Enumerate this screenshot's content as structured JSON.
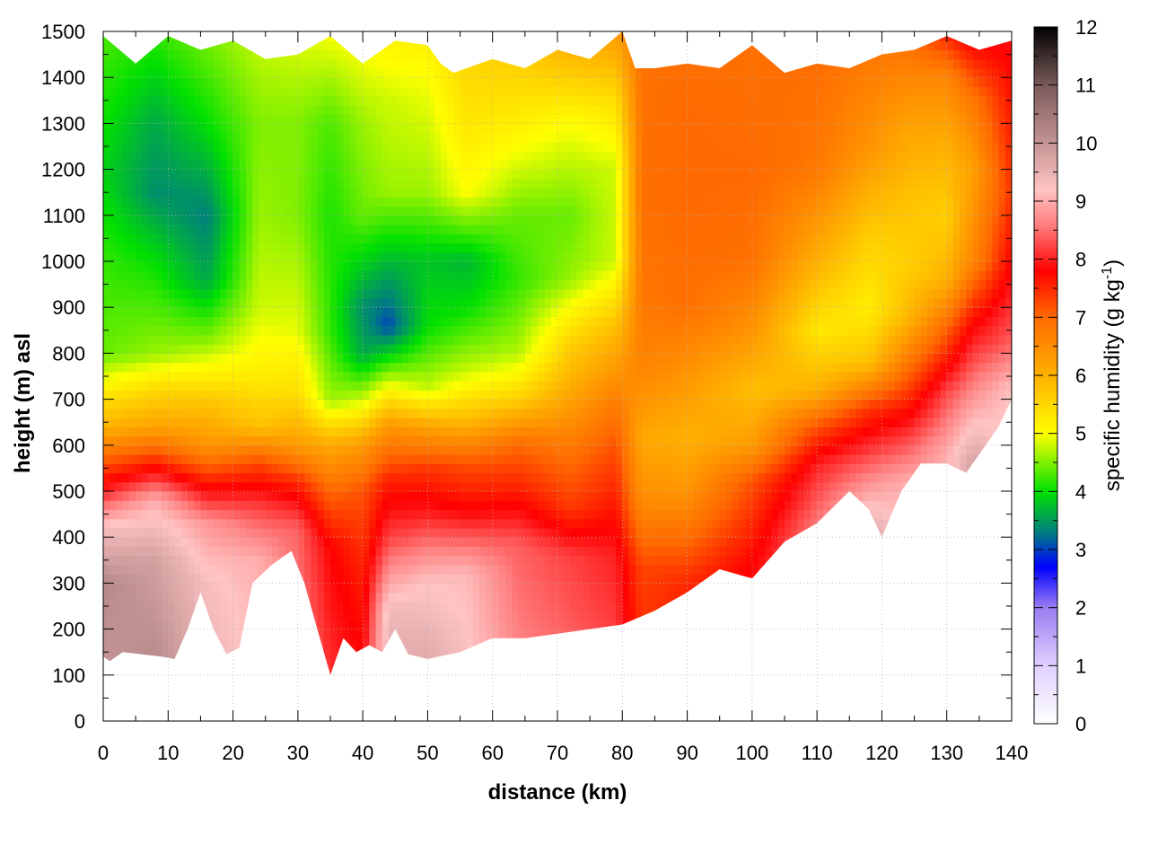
{
  "chart_data": {
    "type": "heatmap",
    "title": "",
    "xlabel": "distance (km)",
    "ylabel": "height (m) asl",
    "colorbar": {
      "label_main": "specific humidity (g kg",
      "label_sup": "-1",
      "label_close": ")",
      "range": [
        0,
        12
      ],
      "ticks": [
        "0",
        "1",
        "2",
        "3",
        "4",
        "5",
        "6",
        "7",
        "8",
        "9",
        "10",
        "11",
        "12"
      ],
      "stops": [
        {
          "v": 0,
          "color": "#ffffff"
        },
        {
          "v": 1,
          "color": "#e0d0ff"
        },
        {
          "v": 2,
          "color": "#9a7cf0"
        },
        {
          "v": 2.7,
          "color": "#0000ff"
        },
        {
          "v": 3.3,
          "color": "#007f7f"
        },
        {
          "v": 4,
          "color": "#00e000"
        },
        {
          "v": 5,
          "color": "#ffff00"
        },
        {
          "v": 6,
          "color": "#ffb000"
        },
        {
          "v": 7,
          "color": "#ff6a00"
        },
        {
          "v": 7.8,
          "color": "#ff0000"
        },
        {
          "v": 8.6,
          "color": "#ff8080"
        },
        {
          "v": 9.2,
          "color": "#ffc4c4"
        },
        {
          "v": 10,
          "color": "#c49494"
        },
        {
          "v": 11,
          "color": "#7a5a5a"
        },
        {
          "v": 12,
          "color": "#000000"
        }
      ]
    },
    "xlim": [
      0,
      140
    ],
    "ylim": [
      0,
      1500
    ],
    "xticks": [
      "0",
      "10",
      "20",
      "30",
      "40",
      "50",
      "60",
      "70",
      "80",
      "90",
      "100",
      "110",
      "120",
      "130",
      "140"
    ],
    "yticks": [
      "0",
      "100",
      "200",
      "300",
      "400",
      "500",
      "600",
      "700",
      "800",
      "900",
      "1000",
      "1100",
      "1200",
      "1300",
      "1400",
      "1500"
    ],
    "grid": true,
    "terrain": {
      "x": [
        0,
        1,
        3,
        6,
        9,
        11,
        13,
        15,
        17,
        19,
        21,
        23,
        26,
        29,
        31,
        33,
        35,
        37,
        39,
        41,
        43,
        45,
        47,
        50,
        55,
        60,
        65,
        70,
        75,
        80,
        85,
        90,
        95,
        100,
        105,
        110,
        115,
        118,
        120,
        123,
        126,
        130,
        133,
        136,
        138,
        140
      ],
      "y": [
        140,
        130,
        150,
        145,
        140,
        135,
        200,
        280,
        200,
        145,
        160,
        300,
        340,
        370,
        300,
        200,
        100,
        180,
        150,
        165,
        150,
        200,
        145,
        135,
        150,
        180,
        180,
        190,
        200,
        210,
        240,
        280,
        330,
        310,
        390,
        430,
        500,
        460,
        400,
        500,
        560,
        560,
        540,
        600,
        640,
        700
      ]
    },
    "top_edge": {
      "x": [
        0,
        5,
        10,
        15,
        20,
        25,
        30,
        35,
        40,
        45,
        50,
        52,
        54,
        60,
        65,
        70,
        75,
        80,
        82,
        85,
        90,
        95,
        100,
        105,
        110,
        115,
        120,
        125,
        130,
        135,
        140
      ],
      "y": [
        1490,
        1430,
        1490,
        1460,
        1480,
        1440,
        1450,
        1490,
        1430,
        1480,
        1470,
        1430,
        1410,
        1440,
        1420,
        1460,
        1440,
        1500,
        1420,
        1420,
        1430,
        1420,
        1470,
        1410,
        1430,
        1420,
        1450,
        1460,
        1490,
        1460,
        1480
      ]
    },
    "profiles": [
      {
        "x": 0,
        "layers": [
          [
            0,
            9.8
          ],
          [
            300,
            10.2
          ],
          [
            420,
            9.3
          ],
          [
            500,
            8.0
          ],
          [
            560,
            7.2
          ],
          [
            640,
            6.0
          ],
          [
            720,
            5.2
          ],
          [
            800,
            4.4
          ],
          [
            1000,
            4.2
          ],
          [
            1200,
            3.9
          ],
          [
            1500,
            4.3
          ]
        ]
      },
      {
        "x": 8,
        "layers": [
          [
            0,
            10.4
          ],
          [
            350,
            9.8
          ],
          [
            480,
            9.0
          ],
          [
            560,
            7.6
          ],
          [
            640,
            6.2
          ],
          [
            720,
            5.5
          ],
          [
            800,
            4.6
          ],
          [
            1000,
            4.0
          ],
          [
            1150,
            3.4
          ],
          [
            1300,
            3.6
          ],
          [
            1500,
            4.2
          ]
        ]
      },
      {
        "x": 16,
        "layers": [
          [
            0,
            9.6
          ],
          [
            300,
            9.3
          ],
          [
            430,
            8.8
          ],
          [
            520,
            7.6
          ],
          [
            600,
            6.4
          ],
          [
            700,
            5.7
          ],
          [
            820,
            4.6
          ],
          [
            960,
            3.6
          ],
          [
            1100,
            3.3
          ],
          [
            1300,
            4.0
          ],
          [
            1500,
            4.5
          ]
        ]
      },
      {
        "x": 24,
        "layers": [
          [
            0,
            9.2
          ],
          [
            350,
            9.0
          ],
          [
            480,
            8.1
          ],
          [
            560,
            7.3
          ],
          [
            640,
            5.8
          ],
          [
            760,
            5.2
          ],
          [
            900,
            4.8
          ],
          [
            1100,
            4.6
          ],
          [
            1300,
            4.5
          ],
          [
            1500,
            4.8
          ]
        ]
      },
      {
        "x": 30,
        "layers": [
          [
            0,
            8.8
          ],
          [
            420,
            8.4
          ],
          [
            520,
            7.5
          ],
          [
            600,
            6.3
          ],
          [
            700,
            5.5
          ],
          [
            850,
            4.9
          ],
          [
            1100,
            4.5
          ],
          [
            1300,
            4.5
          ],
          [
            1500,
            4.9
          ]
        ]
      },
      {
        "x": 35,
        "layers": [
          [
            0,
            8.2
          ],
          [
            380,
            7.8
          ],
          [
            500,
            7.0
          ],
          [
            600,
            6.1
          ],
          [
            700,
            4.6
          ],
          [
            850,
            4.2
          ],
          [
            1100,
            4.1
          ],
          [
            1300,
            4.3
          ],
          [
            1500,
            5.0
          ]
        ]
      },
      {
        "x": 40,
        "layers": [
          [
            0,
            8.0
          ],
          [
            300,
            7.6
          ],
          [
            400,
            7.4
          ],
          [
            500,
            7.2
          ],
          [
            600,
            6.3
          ],
          [
            700,
            4.8
          ],
          [
            800,
            3.6
          ],
          [
            900,
            3.4
          ],
          [
            1100,
            4.4
          ],
          [
            1300,
            4.6
          ],
          [
            1500,
            5.1
          ]
        ]
      },
      {
        "x": 44,
        "layers": [
          [
            0,
            9.8
          ],
          [
            240,
            9.4
          ],
          [
            400,
            8.2
          ],
          [
            520,
            7.6
          ],
          [
            640,
            6.4
          ],
          [
            740,
            4.8
          ],
          [
            860,
            3.0
          ],
          [
            980,
            3.6
          ],
          [
            1150,
            4.6
          ],
          [
            1350,
            4.8
          ],
          [
            1500,
            5.2
          ]
        ]
      },
      {
        "x": 50,
        "layers": [
          [
            0,
            10.0
          ],
          [
            300,
            9.2
          ],
          [
            450,
            8.0
          ],
          [
            550,
            7.4
          ],
          [
            640,
            6.2
          ],
          [
            720,
            4.8
          ],
          [
            860,
            4.0
          ],
          [
            1000,
            3.8
          ],
          [
            1150,
            4.6
          ],
          [
            1350,
            4.9
          ],
          [
            1500,
            5.2
          ]
        ]
      },
      {
        "x": 56,
        "layers": [
          [
            0,
            9.4
          ],
          [
            320,
            9.1
          ],
          [
            460,
            7.8
          ],
          [
            560,
            7.2
          ],
          [
            660,
            5.8
          ],
          [
            760,
            4.8
          ],
          [
            900,
            4.0
          ],
          [
            1000,
            3.7
          ],
          [
            1150,
            5.0
          ],
          [
            1350,
            5.4
          ],
          [
            1500,
            5.6
          ]
        ]
      },
      {
        "x": 64,
        "layers": [
          [
            0,
            8.8
          ],
          [
            380,
            8.4
          ],
          [
            500,
            7.6
          ],
          [
            600,
            7.0
          ],
          [
            700,
            5.6
          ],
          [
            800,
            4.7
          ],
          [
            960,
            4.2
          ],
          [
            1100,
            4.4
          ],
          [
            1300,
            5.2
          ],
          [
            1500,
            5.8
          ]
        ]
      },
      {
        "x": 72,
        "layers": [
          [
            0,
            8.6
          ],
          [
            360,
            8.2
          ],
          [
            460,
            7.4
          ],
          [
            560,
            7.0
          ],
          [
            700,
            6.2
          ],
          [
            820,
            5.6
          ],
          [
            960,
            4.6
          ],
          [
            1100,
            4.4
          ],
          [
            1300,
            5.0
          ],
          [
            1500,
            6.2
          ]
        ]
      },
      {
        "x": 79,
        "layers": [
          [
            0,
            8.4
          ],
          [
            360,
            8.0
          ],
          [
            480,
            7.6
          ],
          [
            600,
            7.2
          ],
          [
            720,
            6.6
          ],
          [
            860,
            5.8
          ],
          [
            1000,
            4.8
          ],
          [
            1200,
            4.8
          ],
          [
            1350,
            5.4
          ],
          [
            1500,
            6.3
          ]
        ]
      },
      {
        "x": 83,
        "layers": [
          [
            0,
            7.6
          ],
          [
            330,
            7.3
          ],
          [
            480,
            6.5
          ],
          [
            620,
            6.1
          ],
          [
            760,
            6.6
          ],
          [
            900,
            6.8
          ],
          [
            1100,
            6.9
          ],
          [
            1300,
            6.9
          ],
          [
            1500,
            6.9
          ]
        ]
      },
      {
        "x": 90,
        "layers": [
          [
            0,
            7.8
          ],
          [
            300,
            7.5
          ],
          [
            500,
            6.4
          ],
          [
            620,
            6.0
          ],
          [
            760,
            6.4
          ],
          [
            900,
            6.9
          ],
          [
            1100,
            7.0
          ],
          [
            1300,
            7.0
          ],
          [
            1500,
            6.9
          ]
        ]
      },
      {
        "x": 100,
        "layers": [
          [
            0,
            8.4
          ],
          [
            340,
            7.8
          ],
          [
            520,
            7.2
          ],
          [
            600,
            6.3
          ],
          [
            720,
            5.8
          ],
          [
            850,
            6.4
          ],
          [
            1000,
            6.9
          ],
          [
            1200,
            7.0
          ],
          [
            1500,
            6.9
          ]
        ]
      },
      {
        "x": 110,
        "layers": [
          [
            0,
            9.0
          ],
          [
            420,
            8.6
          ],
          [
            560,
            8.0
          ],
          [
            640,
            7.2
          ],
          [
            720,
            6.0
          ],
          [
            850,
            5.3
          ],
          [
            1000,
            6.0
          ],
          [
            1200,
            6.8
          ],
          [
            1500,
            7.0
          ]
        ]
      },
      {
        "x": 118,
        "layers": [
          [
            0,
            10.0
          ],
          [
            420,
            9.6
          ],
          [
            560,
            8.4
          ],
          [
            680,
            7.4
          ],
          [
            780,
            5.8
          ],
          [
            900,
            5.2
          ],
          [
            1050,
            5.6
          ],
          [
            1250,
            6.4
          ],
          [
            1500,
            6.9
          ]
        ]
      },
      {
        "x": 124,
        "layers": [
          [
            0,
            9.6
          ],
          [
            520,
            9.0
          ],
          [
            640,
            8.0
          ],
          [
            760,
            7.0
          ],
          [
            880,
            5.9
          ],
          [
            1000,
            5.6
          ],
          [
            1150,
            5.8
          ],
          [
            1300,
            6.2
          ],
          [
            1500,
            7.0
          ]
        ]
      },
      {
        "x": 130,
        "layers": [
          [
            0,
            9.4
          ],
          [
            580,
            9.0
          ],
          [
            720,
            8.2
          ],
          [
            860,
            7.0
          ],
          [
            960,
            6.0
          ],
          [
            1100,
            5.6
          ],
          [
            1250,
            6.0
          ],
          [
            1400,
            6.6
          ],
          [
            1500,
            7.6
          ]
        ]
      },
      {
        "x": 134,
        "layers": [
          [
            0,
            10.2
          ],
          [
            560,
            9.8
          ],
          [
            700,
            8.8
          ],
          [
            860,
            7.8
          ],
          [
            1000,
            6.6
          ],
          [
            1200,
            6.2
          ],
          [
            1350,
            6.8
          ],
          [
            1450,
            7.6
          ],
          [
            1500,
            8.0
          ]
        ]
      },
      {
        "x": 140,
        "layers": [
          [
            0,
            9.4
          ],
          [
            720,
            9.2
          ],
          [
            820,
            8.4
          ],
          [
            1000,
            7.8
          ],
          [
            1150,
            7.4
          ],
          [
            1300,
            7.6
          ],
          [
            1450,
            7.8
          ],
          [
            1500,
            8.0
          ]
        ]
      }
    ]
  }
}
